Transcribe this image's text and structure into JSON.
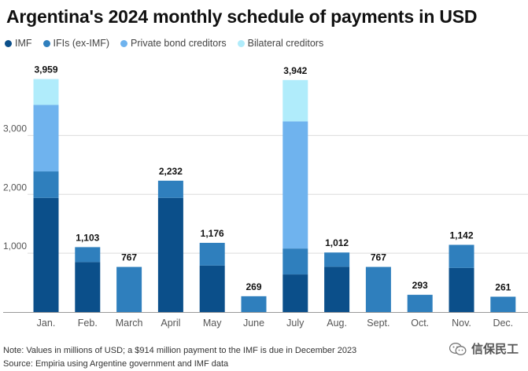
{
  "title": "Argentina's 2024 monthly schedule of payments in USD",
  "legend": [
    {
      "label": "IMF",
      "color": "#0b4f8a"
    },
    {
      "label": "IFIs (ex-IMF)",
      "color": "#2f7fbd"
    },
    {
      "label": "Private bond creditors",
      "color": "#6fb3ee"
    },
    {
      "label": "Bilateral creditors",
      "color": "#b0ecfb"
    }
  ],
  "chart_data": {
    "type": "bar",
    "stacked": true,
    "categories": [
      "Jan.",
      "Feb.",
      "March",
      "April",
      "May",
      "June",
      "July",
      "Aug.",
      "Sept.",
      "Oct.",
      "Nov.",
      "Dec."
    ],
    "series": [
      {
        "name": "IMF",
        "color": "#0b4f8a",
        "values": [
          1940,
          850,
          0,
          1940,
          790,
          0,
          640,
          770,
          0,
          0,
          750,
          0
        ]
      },
      {
        "name": "IFIs (ex-IMF)",
        "color": "#2f7fbd",
        "values": [
          450,
          253,
          767,
          292,
          386,
          269,
          440,
          242,
          767,
          293,
          392,
          261
        ]
      },
      {
        "name": "Private bond creditors",
        "color": "#6fb3ee",
        "values": [
          1130,
          0,
          0,
          0,
          0,
          0,
          2160,
          0,
          0,
          0,
          0,
          0
        ]
      },
      {
        "name": "Bilateral creditors",
        "color": "#b0ecfb",
        "values": [
          439,
          0,
          0,
          0,
          0,
          0,
          702,
          0,
          0,
          0,
          0,
          0
        ]
      }
    ],
    "totals": [
      "3,959",
      "1,103",
      "767",
      "2,232",
      "1,176",
      "269",
      "3,942",
      "1,012",
      "767",
      "293",
      "1,142",
      "261"
    ],
    "yticks": [
      {
        "value": 1000,
        "label": "1,000"
      },
      {
        "value": 2000,
        "label": "2,000"
      },
      {
        "value": 3000,
        "label": "3,000"
      }
    ],
    "ylim": [
      0,
      4000
    ],
    "grid": true
  },
  "notes": {
    "note": "Note: Values in millions of USD; a $914 million payment to the IMF is due in December 2023",
    "source": "Source: Empiria using Argentine government and IMF data"
  },
  "watermark": {
    "text": "信保民工"
  }
}
